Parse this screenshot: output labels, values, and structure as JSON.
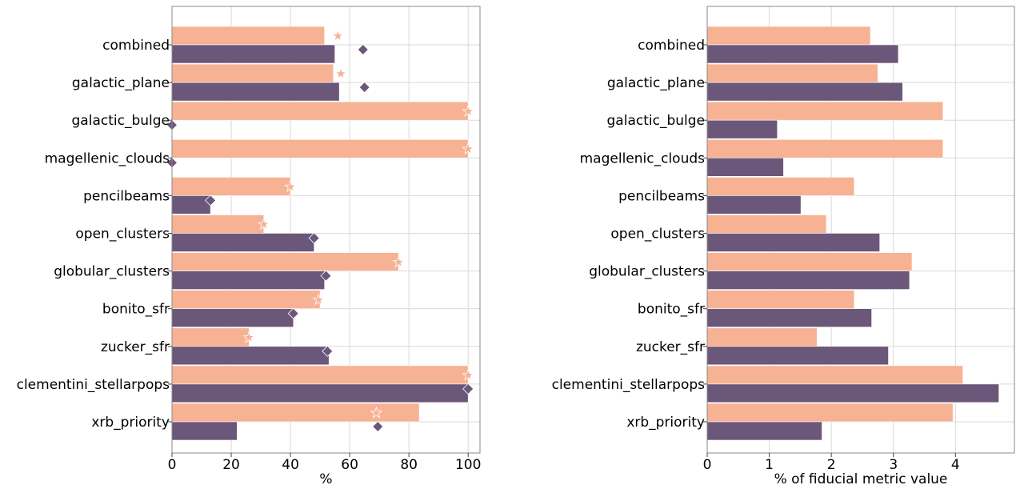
{
  "colors": {
    "salmon": "#F7B294",
    "purple": "#6B5779"
  },
  "chart_data": [
    {
      "type": "bar",
      "orientation": "horizontal",
      "categories": [
        "combined",
        "galactic_plane",
        "galactic_bulge",
        "magellenic_clouds",
        "pencilbeams",
        "open_clusters",
        "globular_clusters",
        "bonito_sfr",
        "zucker_sfr",
        "clementini_stellarpops",
        "xrb_priority"
      ],
      "series": [
        {
          "marker": "none",
          "color": "#F7B294",
          "values": [
            51.5,
            54.5,
            100,
            100,
            40,
            31,
            76.5,
            50,
            26,
            100,
            83.5
          ]
        },
        {
          "marker": "none",
          "color": "#6B5779",
          "values": [
            55,
            56.5,
            0,
            0,
            13,
            48,
            51.5,
            41,
            53,
            100,
            22
          ]
        },
        {
          "marker": "star",
          "color": "#F7B294",
          "values": [
            56,
            57,
            100,
            100,
            40,
            31,
            76.5,
            49.5,
            26,
            100,
            69
          ]
        },
        {
          "marker": "diamond",
          "color": "#6B5779",
          "values": [
            64.5,
            65,
            0,
            0,
            13,
            48,
            52,
            41,
            52.5,
            100,
            69.5
          ]
        }
      ],
      "xlabel": "%",
      "xlim": [
        0,
        104
      ],
      "xticks": [
        0,
        20,
        40,
        60,
        80,
        100
      ],
      "grid": true
    },
    {
      "type": "bar",
      "orientation": "horizontal",
      "categories": [
        "combined",
        "galactic_plane",
        "galactic_bulge",
        "magellenic_clouds",
        "pencilbeams",
        "open_clusters",
        "globular_clusters",
        "bonito_sfr",
        "zucker_sfr",
        "clementini_stellarpops",
        "xrb_priority"
      ],
      "series": [
        {
          "color": "#F7B294",
          "values": [
            2.63,
            2.75,
            3.8,
            3.8,
            2.37,
            1.92,
            3.3,
            2.37,
            1.77,
            4.12,
            3.96
          ]
        },
        {
          "color": "#6B5779",
          "values": [
            3.08,
            3.15,
            1.13,
            1.23,
            1.51,
            2.78,
            3.26,
            2.65,
            2.92,
            4.7,
            1.85
          ]
        }
      ],
      "xlabel": "% of fiducial metric value",
      "xlim": [
        0,
        4.95
      ],
      "xticks": [
        0,
        1,
        2,
        3,
        4
      ],
      "grid": true
    }
  ]
}
